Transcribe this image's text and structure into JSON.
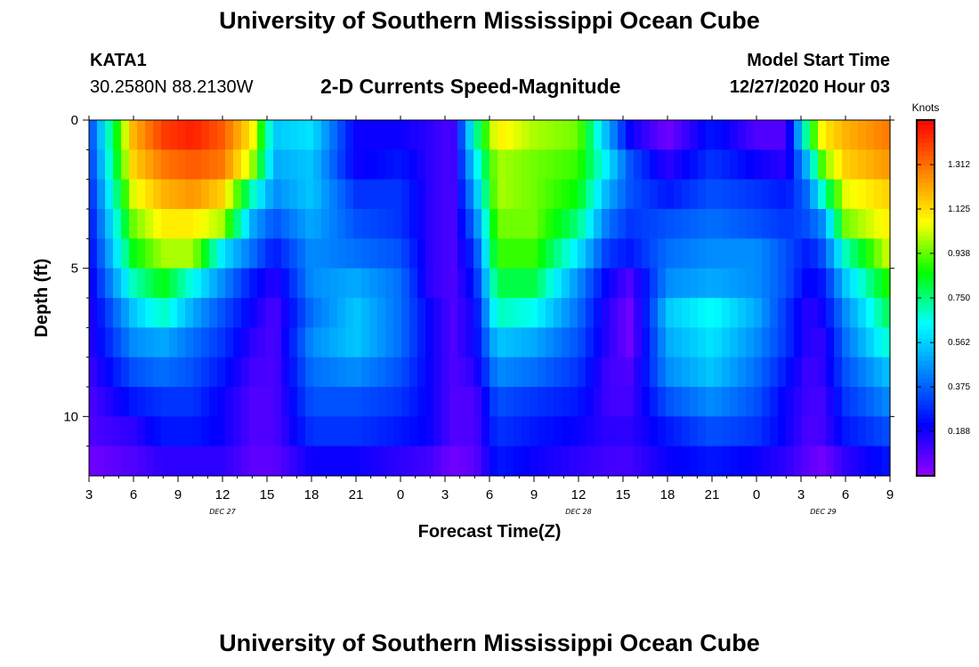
{
  "header": {
    "title": "University of Southern Mississippi Ocean Cube",
    "station": "KATA1",
    "coords": "30.2580N 88.2130W",
    "product": "2-D Currents Speed-Magnitude",
    "start_label": "Model Start Time",
    "start_value": "12/27/2020 Hour 03"
  },
  "footer": {
    "title": "University of Southern Mississippi Ocean Cube"
  },
  "chart_data": {
    "type": "heatmap",
    "title": "2-D Currents Speed-Magnitude",
    "xlabel": "Forecast Time(Z)",
    "ylabel": "Depth (ft)",
    "x_tick_labels": [
      "3",
      "6",
      "9",
      "12",
      "15",
      "18",
      "21",
      "0",
      "3",
      "6",
      "9",
      "12",
      "15",
      "18",
      "21",
      "0",
      "3",
      "6",
      "9"
    ],
    "x_hours": [
      3,
      6,
      9,
      12,
      15,
      18,
      21,
      24,
      27,
      30,
      33,
      36,
      39,
      42,
      45,
      48,
      51,
      54,
      57
    ],
    "x_range_hours": [
      3,
      57
    ],
    "date_labels": [
      {
        "label": "DEC 27",
        "hour": 12
      },
      {
        "label": "DEC 28",
        "hour": 36
      },
      {
        "label": "DEC 29",
        "hour": 52.5
      }
    ],
    "y_ticks": [
      0,
      5,
      10
    ],
    "y_range_ft": [
      0,
      12
    ],
    "y_inverted": true,
    "colorbar": {
      "title": "Knots",
      "tick_labels": [
        "1.312",
        "1.125",
        "0.938",
        "0.750",
        "0.562",
        "0.375",
        "0.188"
      ],
      "tick_values": [
        1.312,
        1.125,
        0.938,
        0.75,
        0.562,
        0.375,
        0.188
      ],
      "range": [
        0.0,
        1.5
      ],
      "colors": [
        "#9400ff",
        "#0000ff",
        "#0080ff",
        "#00ffff",
        "#00ff00",
        "#ffff00",
        "#ff8000",
        "#ff0000"
      ]
    },
    "depth_levels_ft": [
      0.5,
      1.5,
      2.5,
      3.5,
      4.5,
      5.5,
      6.5,
      7.5,
      8.5,
      9.5,
      10.5,
      11.5
    ],
    "time_hours": [
      3,
      6,
      8,
      10,
      12,
      14,
      15.5,
      18,
      21,
      24,
      26,
      27.5,
      29,
      30.5,
      33,
      36,
      38,
      39.5,
      42,
      45,
      48,
      50,
      51.5,
      52.5,
      54,
      57
    ],
    "values": [
      [
        0.3,
        1.2,
        1.4,
        1.45,
        1.35,
        1.1,
        0.55,
        0.6,
        0.2,
        0.2,
        0.15,
        0.1,
        0.7,
        1.1,
        1.0,
        0.95,
        0.5,
        0.2,
        0.05,
        0.25,
        0.1,
        0.1,
        0.8,
        1.1,
        1.2,
        1.3
      ],
      [
        0.28,
        1.15,
        1.3,
        1.35,
        1.3,
        1.0,
        0.5,
        0.55,
        0.2,
        0.25,
        0.15,
        0.1,
        0.6,
        1.0,
        0.95,
        0.9,
        0.6,
        0.35,
        0.15,
        0.3,
        0.2,
        0.15,
        0.55,
        0.95,
        1.15,
        1.25
      ],
      [
        0.25,
        1.05,
        1.2,
        1.25,
        1.15,
        0.7,
        0.45,
        0.55,
        0.3,
        0.3,
        0.15,
        0.1,
        0.5,
        1.0,
        0.95,
        0.85,
        0.5,
        0.35,
        0.25,
        0.35,
        0.3,
        0.25,
        0.4,
        0.7,
        1.05,
        1.15
      ],
      [
        0.22,
        0.95,
        1.1,
        1.1,
        1.0,
        0.5,
        0.35,
        0.5,
        0.35,
        0.3,
        0.15,
        0.1,
        0.4,
        0.95,
        0.95,
        0.75,
        0.4,
        0.3,
        0.35,
        0.4,
        0.35,
        0.3,
        0.35,
        0.45,
        0.95,
        1.1
      ],
      [
        0.2,
        0.85,
        1.0,
        1.0,
        0.6,
        0.4,
        0.25,
        0.45,
        0.4,
        0.35,
        0.15,
        0.1,
        0.3,
        0.9,
        0.9,
        0.6,
        0.3,
        0.25,
        0.4,
        0.45,
        0.45,
        0.35,
        0.25,
        0.35,
        0.7,
        1.05
      ],
      [
        0.18,
        0.7,
        0.85,
        0.65,
        0.45,
        0.25,
        0.15,
        0.45,
        0.5,
        0.4,
        0.15,
        0.1,
        0.25,
        0.8,
        0.8,
        0.45,
        0.2,
        0.1,
        0.45,
        0.5,
        0.45,
        0.35,
        0.2,
        0.25,
        0.55,
        0.9
      ],
      [
        0.15,
        0.55,
        0.7,
        0.5,
        0.35,
        0.2,
        0.1,
        0.4,
        0.55,
        0.4,
        0.2,
        0.1,
        0.2,
        0.7,
        0.65,
        0.4,
        0.15,
        0.05,
        0.55,
        0.65,
        0.5,
        0.3,
        0.15,
        0.2,
        0.45,
        0.8
      ],
      [
        0.15,
        0.45,
        0.5,
        0.4,
        0.3,
        0.15,
        0.1,
        0.45,
        0.55,
        0.4,
        0.2,
        0.1,
        0.2,
        0.55,
        0.5,
        0.35,
        0.15,
        0.05,
        0.5,
        0.6,
        0.45,
        0.3,
        0.15,
        0.15,
        0.4,
        0.7
      ],
      [
        0.12,
        0.35,
        0.4,
        0.35,
        0.25,
        0.12,
        0.1,
        0.4,
        0.45,
        0.35,
        0.2,
        0.1,
        0.15,
        0.45,
        0.4,
        0.3,
        0.12,
        0.1,
        0.45,
        0.55,
        0.4,
        0.25,
        0.12,
        0.15,
        0.35,
        0.55
      ],
      [
        0.1,
        0.25,
        0.3,
        0.3,
        0.2,
        0.1,
        0.1,
        0.35,
        0.35,
        0.3,
        0.2,
        0.1,
        0.1,
        0.35,
        0.3,
        0.25,
        0.12,
        0.12,
        0.35,
        0.45,
        0.35,
        0.2,
        0.12,
        0.12,
        0.3,
        0.45
      ],
      [
        0.1,
        0.15,
        0.25,
        0.25,
        0.2,
        0.1,
        0.1,
        0.3,
        0.3,
        0.25,
        0.2,
        0.1,
        0.1,
        0.3,
        0.25,
        0.2,
        0.15,
        0.15,
        0.25,
        0.35,
        0.3,
        0.2,
        0.1,
        0.12,
        0.25,
        0.35
      ],
      [
        0.05,
        0.1,
        0.15,
        0.15,
        0.15,
        0.08,
        0.08,
        0.2,
        0.2,
        0.15,
        0.12,
        0.05,
        0.08,
        0.25,
        0.2,
        0.15,
        0.12,
        0.12,
        0.2,
        0.25,
        0.2,
        0.15,
        0.08,
        0.05,
        0.15,
        0.25
      ]
    ]
  }
}
